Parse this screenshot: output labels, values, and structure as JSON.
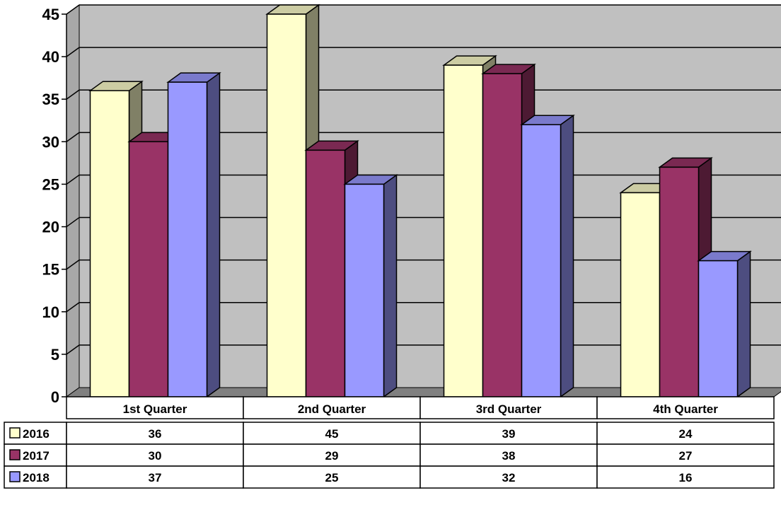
{
  "chart_data": {
    "type": "bar",
    "style": "3d-clustered-column-with-data-table",
    "categories": [
      "1st Quarter",
      "2nd Quarter",
      "3rd Quarter",
      "4th Quarter"
    ],
    "series": [
      {
        "name": "2016",
        "values": [
          36,
          45,
          39,
          24
        ],
        "color": "#ffffcc",
        "side_color": "#808066",
        "top_color": "#cccca3"
      },
      {
        "name": "2017",
        "values": [
          30,
          29,
          38,
          27
        ],
        "color": "#993366",
        "side_color": "#4d1a33",
        "top_color": "#7a2952"
      },
      {
        "name": "2018",
        "values": [
          37,
          25,
          32,
          16
        ],
        "color": "#9999ff",
        "side_color": "#4d4d80",
        "top_color": "#7a7acc"
      }
    ],
    "ylim": [
      0,
      45
    ],
    "yticks": [
      "0",
      "5",
      "10",
      "15",
      "20",
      "25",
      "30",
      "35",
      "40",
      "45"
    ],
    "grid": true,
    "legend": "data-table-left",
    "title": "",
    "xlabel": "",
    "ylabel": "",
    "colors": {
      "plot_wall": "#c0c0c0",
      "plot_floor": "#808080",
      "gridline": "#000000"
    }
  }
}
